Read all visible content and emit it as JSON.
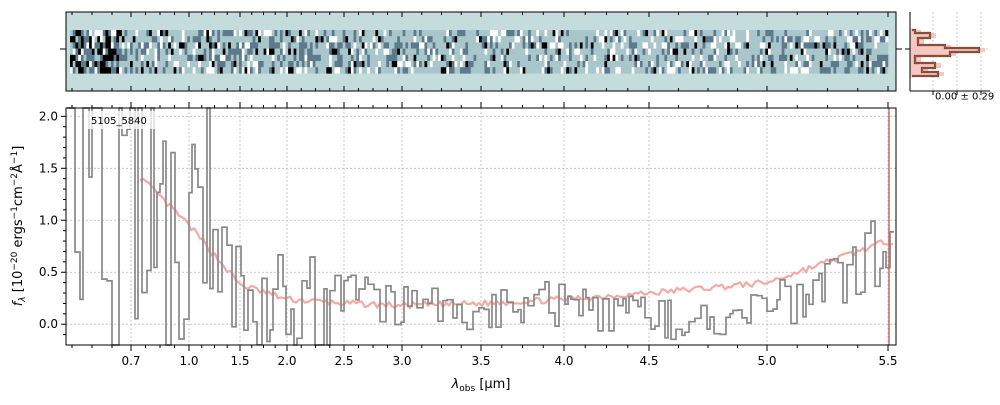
{
  "chart_data": [
    {
      "type": "heatmap",
      "panel": "2D spectrum",
      "rows": 7,
      "columns": 300,
      "background": "#c5dcdc",
      "colormap": [
        "#ffffff",
        "#a9c6cb",
        "#5c7a8c",
        "#000000"
      ]
    },
    {
      "type": "line",
      "panel": "spatial profile",
      "label": "0.00 ± 0.29"
    },
    {
      "type": "line",
      "panel": "1D spectrum",
      "annotation": "5105_5840",
      "ylabel": "f_λ [10^-20 ergs^-1 cm^-2 Å^-1]",
      "ylabel_parts": {
        "f": "f",
        "lambda": "λ",
        "pre": " [10",
        "e1": "−20",
        "mid": " ergs",
        "e2": "−1",
        "cm": "cm",
        "e3": "−2",
        "ang": "Å",
        "e4": "−1",
        "close": "]"
      },
      "xlabel_parts": {
        "lambda": "λ",
        "sub": "obs",
        "rest": " [μm]"
      },
      "xscale": "nonlinear (dispersion)",
      "x_ticks": [
        "0.7",
        "1.0",
        "1.5",
        "2.0",
        "2.5",
        "3.0",
        "3.5",
        "4.0",
        "4.5",
        "5.0",
        "5.5"
      ],
      "y_ticks": [
        "0.0",
        "0.5",
        "1.0",
        "1.5",
        "2.0"
      ],
      "ylim": [
        -0.2,
        2.08
      ],
      "grid": true,
      "colors": {
        "data": "#888888",
        "model": "#f4aaa4"
      },
      "x": [
        0.7,
        1.0,
        1.5,
        2.0,
        2.5,
        3.0,
        3.5,
        4.0,
        4.5,
        5.0,
        5.5
      ],
      "series": [
        {
          "color": "#f4aaa4",
          "values": [
            1.5,
            0.95,
            0.38,
            0.24,
            0.2,
            0.18,
            0.2,
            0.24,
            0.3,
            0.4,
            0.8
          ]
        },
        {
          "color": "#888888",
          "values": [
            1.2,
            0.9,
            0.4,
            0.2,
            0.3,
            0.18,
            0.15,
            0.2,
            0.05,
            0.15,
            0.7
          ]
        }
      ]
    }
  ]
}
